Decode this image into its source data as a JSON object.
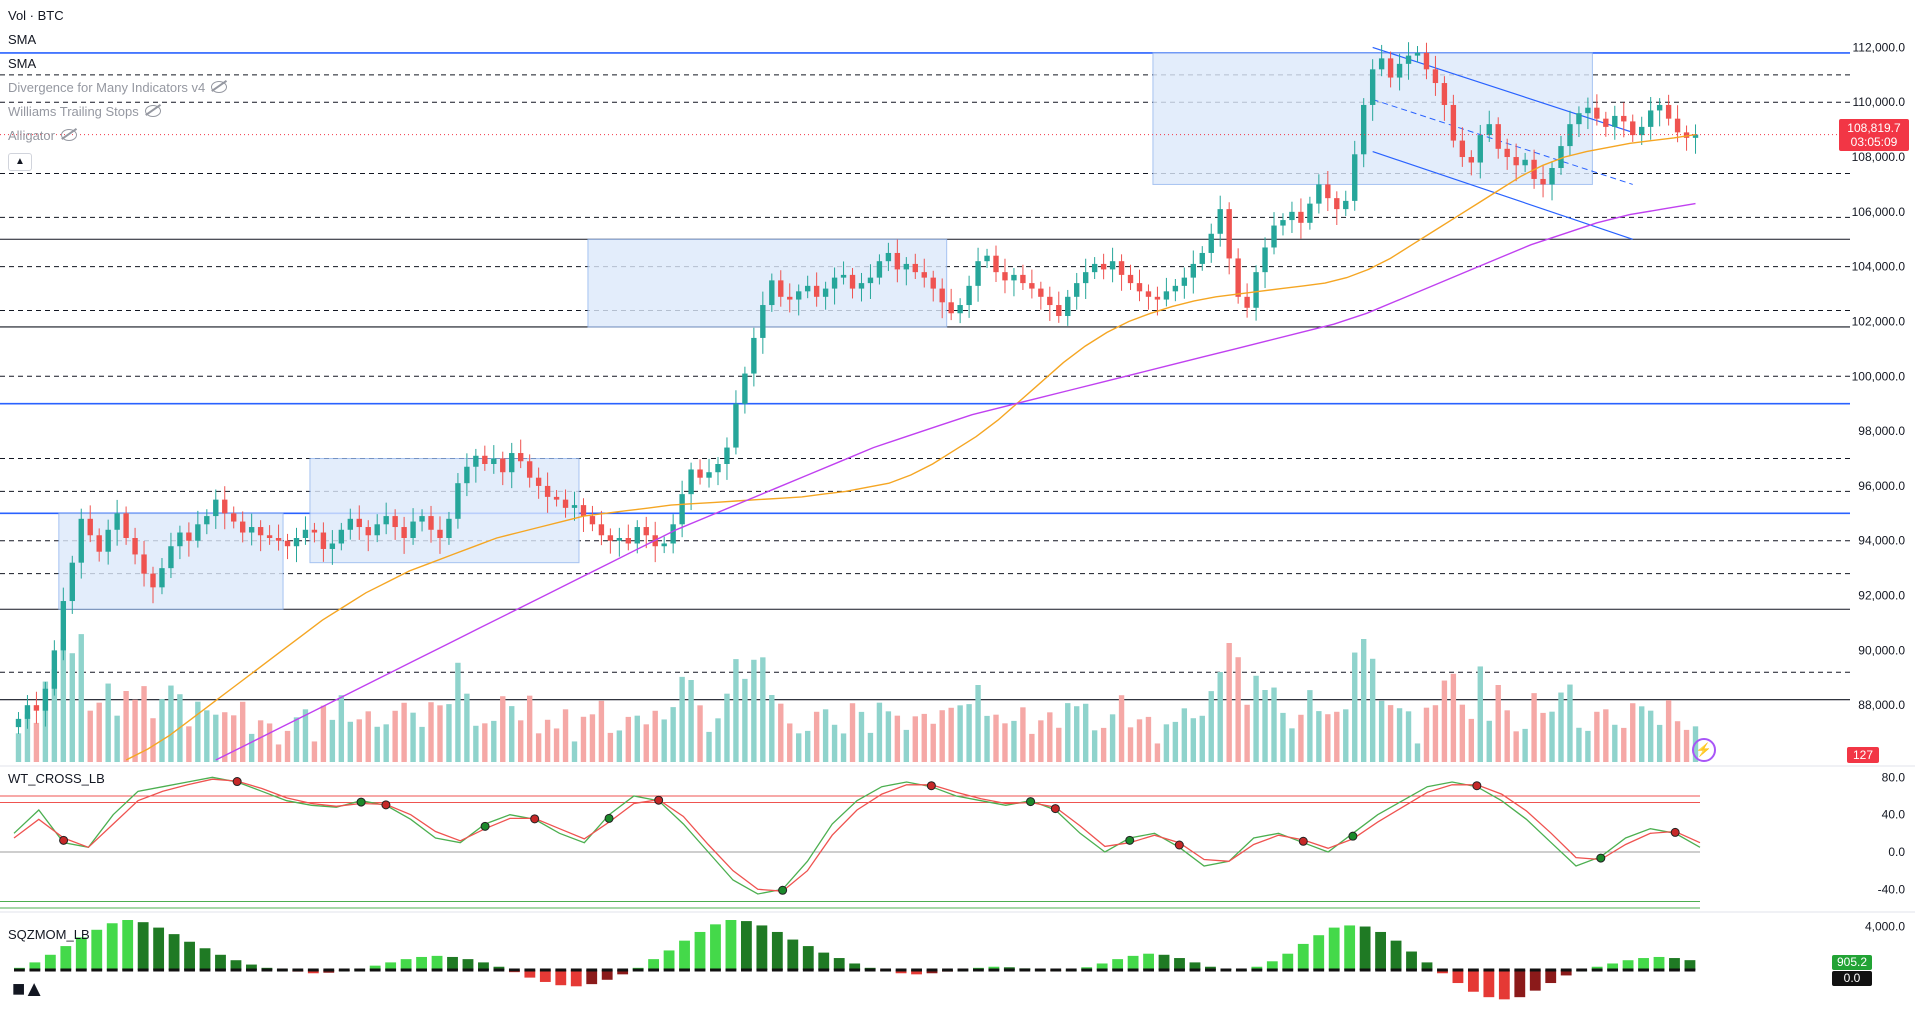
{
  "legend": {
    "vol": "Vol · BTC",
    "sma1": "SMA",
    "sma2": "SMA",
    "divergence": "Divergence for Many Indicators v4",
    "williams": "Williams Trailing Stops",
    "alligator": "Alligator"
  },
  "panes": {
    "wt_title": "WT_CROSS_LB",
    "sqz_title": "SQZMOM_LB"
  },
  "badges": {
    "last_price": "108,819.7",
    "countdown": "03:05:09",
    "volume": "127",
    "sqz_value": "905.2",
    "sqz_zero": "0.0"
  },
  "icons": {
    "hide": "eye-slash-icon",
    "collapse": "chevron-up-icon",
    "alert": "lightning-icon",
    "logo": "tradingview-logo"
  },
  "colors": {
    "up": "#26a69a",
    "down": "#ef5350",
    "sma_fast": "#f5a623",
    "sma_slow": "#c041f0",
    "level_blue": "#2962ff",
    "box_fill": "#dde9fb",
    "channel": "#2962ff"
  },
  "chart_data": [
    {
      "type": "candlestick",
      "ylim": [
        86000,
        113000
      ],
      "price_axis": [
        "112,000.0",
        "110,000.0",
        "108,000.0",
        "106,000.0",
        "104,000.0",
        "102,000.0",
        "100,000.0",
        "98,000.0",
        "96,000.0",
        "94,000.0",
        "92,000.0",
        "90,000.0",
        "88,000.0"
      ],
      "last_price": 108819.7,
      "horizontal_levels_solid": [
        111800,
        105000,
        101800,
        99000,
        95000,
        91500,
        88200
      ],
      "horizontal_levels_dashed": [
        111000,
        110000,
        107400,
        105800,
        104000,
        102400,
        100000,
        97000,
        95800,
        94000,
        92800,
        89200
      ],
      "closes": [
        87500,
        88000,
        87800,
        88600,
        90000,
        91800,
        93200,
        94800,
        94200,
        93600,
        94400,
        95000,
        94100,
        93500,
        92800,
        92300,
        93000,
        93800,
        94300,
        94000,
        94600,
        94900,
        95500,
        95000,
        94700,
        94300,
        94500,
        94200,
        94100,
        94000,
        93800,
        94100,
        94400,
        94300,
        93700,
        93900,
        94400,
        94800,
        94500,
        94200,
        94600,
        94900,
        94500,
        94100,
        94700,
        94900,
        94400,
        94100,
        94800,
        96100,
        96700,
        97100,
        96800,
        97000,
        96500,
        97200,
        96900,
        96300,
        96000,
        95600,
        95500,
        95200,
        95300,
        94900,
        94600,
        94200,
        94000,
        94100,
        93900,
        94500,
        94200,
        93800,
        93900,
        94600,
        95700,
        96600,
        96300,
        96500,
        96800,
        97400,
        99000,
        100100,
        101400,
        102600,
        103500,
        102900,
        102800,
        103100,
        103300,
        102900,
        103200,
        103600,
        103700,
        103200,
        103400,
        103600,
        104200,
        104500,
        103900,
        104100,
        103800,
        103600,
        103200,
        102700,
        102300,
        102600,
        103300,
        104200,
        104400,
        103800,
        103500,
        103700,
        103400,
        103200,
        102900,
        102600,
        102200,
        102900,
        103400,
        103800,
        104100,
        103900,
        104200,
        103700,
        103400,
        103100,
        102900,
        102800,
        103100,
        103300,
        103600,
        104100,
        104500,
        105200,
        106100,
        104300,
        102900,
        102500,
        103800,
        104700,
        105500,
        105700,
        106000,
        105600,
        106300,
        107000,
        106500,
        106100,
        106400,
        108100,
        109900,
        111200,
        111600,
        110900,
        111400,
        111700,
        111800,
        111200,
        110700,
        109900,
        108600,
        108000,
        107800,
        108800,
        109200,
        108300,
        108000,
        107700,
        107900,
        107200,
        107000,
        107600,
        108400,
        109200,
        109600,
        109800,
        109400,
        109100,
        109500,
        109300,
        108800,
        109100,
        109700,
        109900,
        109400,
        108900,
        108700,
        108819.7
      ],
      "sma_fast": [
        86000,
        86400,
        86900,
        87500,
        88100,
        88700,
        89300,
        89900,
        90500,
        91100,
        91600,
        92100,
        92500,
        92900,
        93200,
        93500,
        93800,
        94100,
        94300,
        94500,
        94700,
        94900,
        95000,
        95100,
        95200,
        95300,
        95350,
        95400,
        95450,
        95500,
        95550,
        95600,
        95700,
        95800,
        95950,
        96100,
        96400,
        96800,
        97300,
        97800,
        98400,
        99100,
        99800,
        100500,
        101100,
        101600,
        102000,
        102300,
        102550,
        102750,
        102900,
        103000,
        103100,
        103200,
        103300,
        103400,
        103600,
        103900,
        104300,
        104800,
        105300,
        105800,
        106300,
        106800,
        107300,
        107700,
        108000,
        108200,
        108350,
        108500,
        108600,
        108700,
        108819.7
      ],
      "sma_slow": [
        86000,
        86600,
        87200,
        87800,
        88400,
        89000,
        89600,
        90200,
        90800,
        91400,
        92000,
        92600,
        93200,
        93800,
        94400,
        94900,
        95400,
        95900,
        96400,
        96900,
        97400,
        97800,
        98200,
        98600,
        98900,
        99200,
        99500,
        99800,
        100100,
        100400,
        100700,
        101000,
        101300,
        101600,
        101900,
        102300,
        102800,
        103300,
        103800,
        104300,
        104800,
        105200,
        105600,
        105900,
        106100,
        106300
      ],
      "boxes": [
        {
          "from": 95000,
          "to": 91500
        },
        {
          "from": 97000,
          "to": 93200
        },
        {
          "from": 105000,
          "to": 101800
        },
        {
          "from": 111800,
          "to": 107000
        }
      ]
    },
    {
      "type": "bar",
      "title": "Vol · BTC",
      "last_volume": 127
    },
    {
      "type": "line",
      "title": "WT_CROSS_LB",
      "ylim": [
        -60,
        90
      ],
      "y_ticks": [
        "80.0",
        "40.0",
        "0.0",
        "-40.0"
      ],
      "levels": [
        60,
        53,
        -53,
        -60
      ],
      "series": [
        {
          "values": [
            20,
            45,
            10,
            5,
            40,
            65,
            70,
            75,
            80,
            75,
            65,
            55,
            50,
            48,
            55,
            50,
            35,
            15,
            10,
            30,
            40,
            35,
            20,
            10,
            40,
            60,
            55,
            30,
            0,
            -30,
            -45,
            -40,
            -10,
            30,
            55,
            70,
            75,
            70,
            60,
            55,
            50,
            55,
            45,
            20,
            0,
            15,
            20,
            5,
            -15,
            -10,
            15,
            20,
            10,
            0,
            20,
            40,
            55,
            70,
            75,
            70,
            55,
            35,
            10,
            -15,
            -5,
            15,
            25,
            20,
            5
          ]
        },
        {
          "values": [
            15,
            35,
            15,
            5,
            30,
            55,
            65,
            72,
            78,
            76,
            68,
            58,
            52,
            49,
            52,
            51,
            40,
            22,
            12,
            25,
            36,
            36,
            25,
            14,
            32,
            52,
            56,
            38,
            8,
            -20,
            -40,
            -42,
            -20,
            18,
            45,
            62,
            72,
            72,
            64,
            57,
            52,
            53,
            48,
            28,
            6,
            10,
            18,
            10,
            -8,
            -10,
            8,
            18,
            13,
            4,
            14,
            32,
            48,
            64,
            72,
            72,
            62,
            44,
            20,
            -6,
            -8,
            8,
            20,
            22,
            10
          ]
        }
      ]
    },
    {
      "type": "bar",
      "title": "SQZMOM_LB",
      "y_ticks": [
        "4,000.0"
      ],
      "last_value": 905.2,
      "values": [
        200,
        700,
        1400,
        2200,
        3000,
        3700,
        4300,
        4600,
        4400,
        3900,
        3300,
        2600,
        2000,
        1400,
        900,
        500,
        200,
        50,
        -150,
        -300,
        -250,
        -100,
        100,
        400,
        700,
        1000,
        1200,
        1300,
        1200,
        1000,
        700,
        300,
        -200,
        -700,
        -1100,
        -1400,
        -1500,
        -1300,
        -900,
        -400,
        200,
        1000,
        1800,
        2700,
        3500,
        4200,
        4600,
        4500,
        4100,
        3500,
        2800,
        2200,
        1600,
        1100,
        600,
        200,
        -100,
        -300,
        -400,
        -300,
        -150,
        50,
        200,
        300,
        250,
        150,
        50,
        -50,
        0,
        250,
        600,
        1000,
        1300,
        1500,
        1400,
        1100,
        700,
        300,
        100,
        0,
        300,
        800,
        1500,
        2400,
        3200,
        3900,
        4100,
        4000,
        3500,
        2700,
        1700,
        700,
        -300,
        -1200,
        -2000,
        -2500,
        -2700,
        -2500,
        -1900,
        -1200,
        -500,
        0,
        300,
        600,
        900,
        1100,
        1200,
        1100,
        905.2
      ]
    }
  ]
}
